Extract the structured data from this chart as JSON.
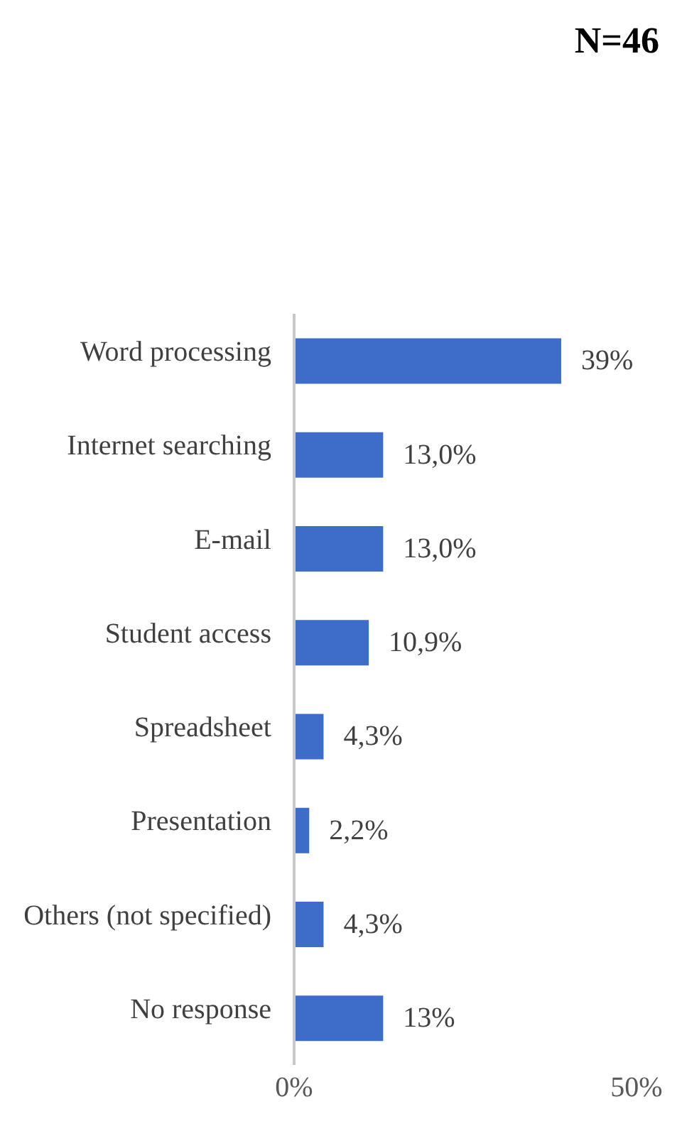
{
  "chart_data": {
    "type": "bar",
    "orientation": "horizontal",
    "title": "N=46",
    "categories": [
      "Word processing",
      "Internet searching",
      "E-mail",
      "Student access",
      "Spreadsheet",
      "Presentation",
      "Others (not specified)",
      "No response"
    ],
    "values": [
      39,
      13.0,
      13.0,
      10.9,
      4.3,
      2.2,
      4.3,
      13
    ],
    "value_labels": [
      "39%",
      "13,0%",
      "13,0%",
      "10,9%",
      "4,3%",
      "2,2%",
      "4,3%",
      "13%"
    ],
    "color": "#3d6dc8",
    "xlim": [
      0,
      50
    ],
    "xticks": [
      {
        "value": 0,
        "label": "0%"
      },
      {
        "value": 50,
        "label": "50%"
      }
    ]
  }
}
